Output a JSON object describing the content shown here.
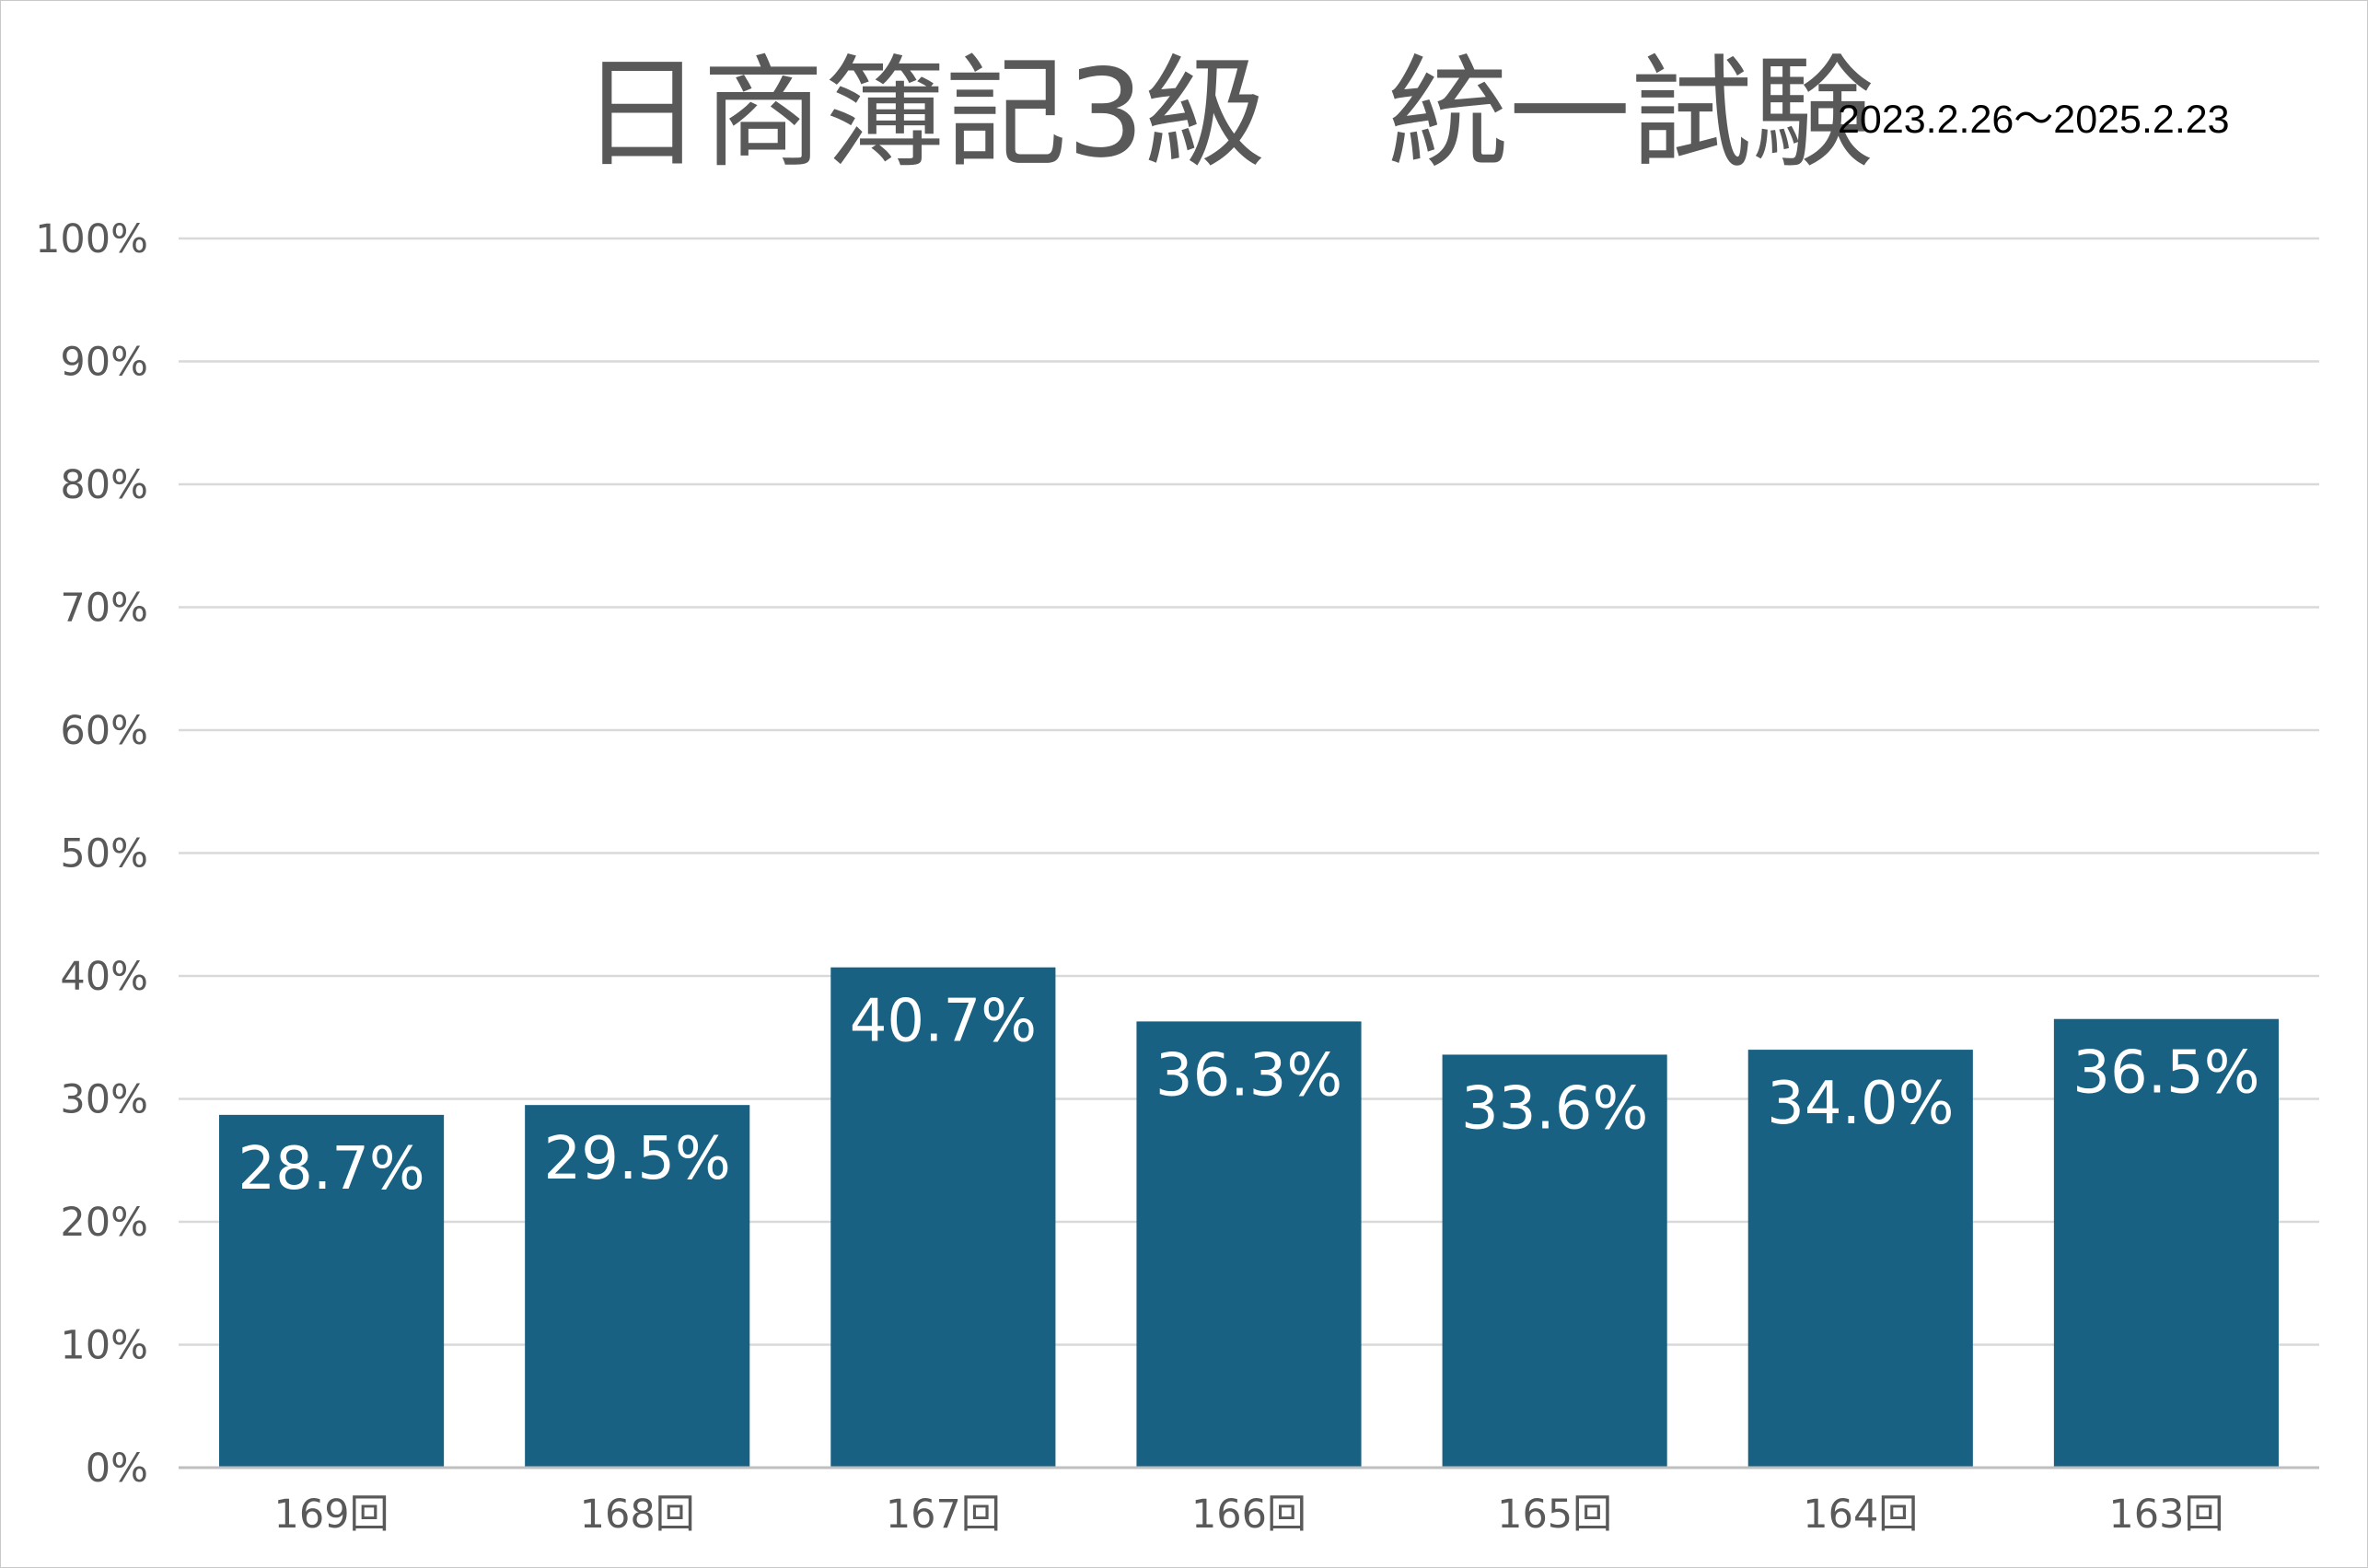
{
  "chart_data": {
    "type": "bar",
    "title": "日商簿記3級　統一試験",
    "subtitle": "2023.2.26～2025.2.23",
    "categories": [
      "169回",
      "168回",
      "167回",
      "166回",
      "165回",
      "164回",
      "163回"
    ],
    "values": [
      28.7,
      29.5,
      40.7,
      36.3,
      33.6,
      34.0,
      36.5
    ],
    "data_labels": [
      "28.7%",
      "29.5%",
      "40.7%",
      "36.3%",
      "33.6%",
      "34.0%",
      "36.5%"
    ],
    "y_ticks": [
      "0%",
      "10%",
      "20%",
      "30%",
      "40%",
      "50%",
      "60%",
      "70%",
      "80%",
      "90%",
      "100%"
    ],
    "ylim": [
      0,
      100
    ],
    "xlabel": "",
    "ylabel": "",
    "grid": true,
    "legend": "none",
    "colors": {
      "bar": "#186183",
      "data_label": "#ffffff",
      "title": "#595959",
      "subtitle": "#000000",
      "tick_label": "#595959",
      "grid": "#d9d9d9",
      "axis": "#bfbfbf"
    }
  }
}
